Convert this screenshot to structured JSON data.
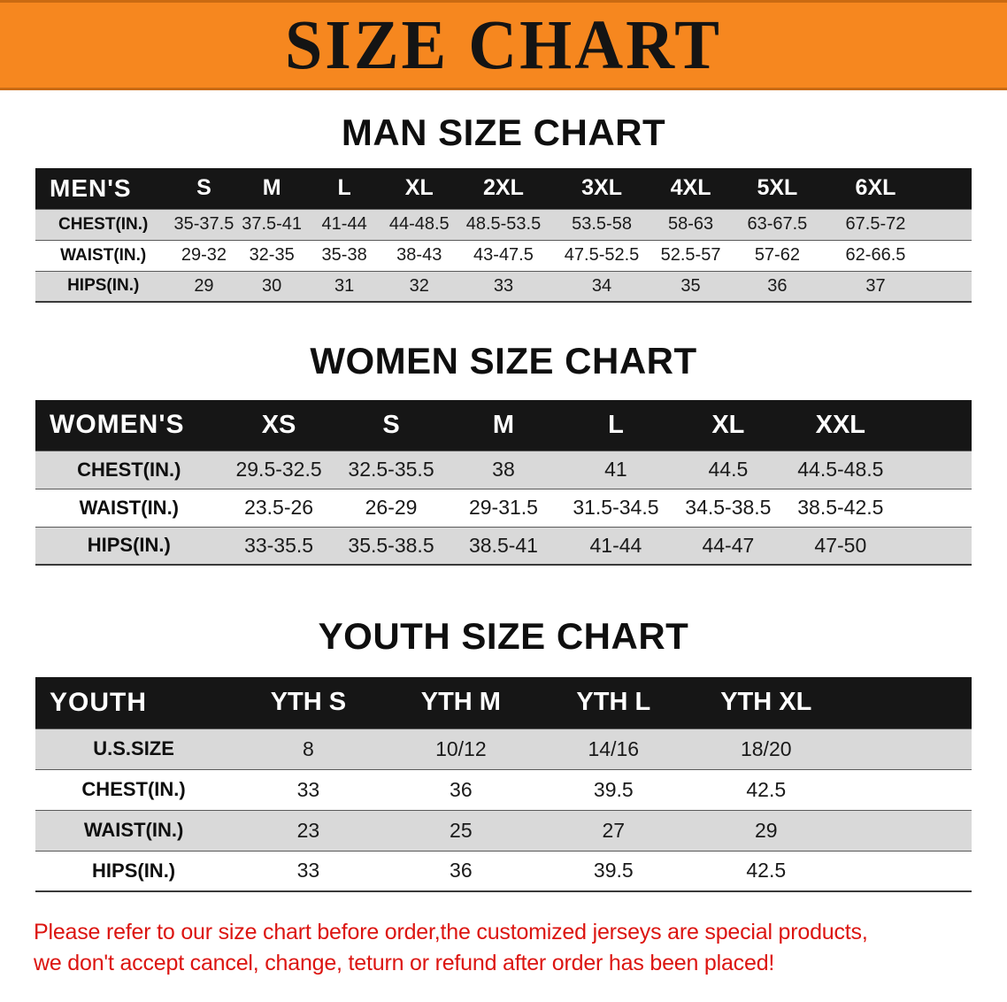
{
  "banner": {
    "title": "SIZE CHART"
  },
  "colors": {
    "banner_orange": "#F6871F",
    "banner_border": "#C96A12",
    "table_header_black": "#161616",
    "shaded_row_gray": "#D9D9D9",
    "disclaimer_red": "#DC1410"
  },
  "men": {
    "heading": "MAN SIZE CHART",
    "table": {
      "header": [
        "MEN'S",
        "S",
        "M",
        "L",
        "XL",
        "2XL",
        "3XL",
        "4XL",
        "5XL",
        "6XL"
      ],
      "rows": [
        {
          "label": "CHEST(IN.)",
          "values": [
            "35-37.5",
            "37.5-41",
            "41-44",
            "44-48.5",
            "48.5-53.5",
            "53.5-58",
            "58-63",
            "63-67.5",
            "67.5-72"
          ]
        },
        {
          "label": "WAIST(IN.)",
          "values": [
            "29-32",
            "32-35",
            "35-38",
            "38-43",
            "43-47.5",
            "47.5-52.5",
            "52.5-57",
            "57-62",
            "62-66.5"
          ]
        },
        {
          "label": "HIPS(IN.)",
          "values": [
            "29",
            "30",
            "31",
            "32",
            "33",
            "34",
            "35",
            "36",
            "37"
          ]
        }
      ]
    }
  },
  "women": {
    "heading": "WOMEN SIZE CHART",
    "table": {
      "header": [
        "WOMEN'S",
        "XS",
        "S",
        "M",
        "L",
        "XL",
        "XXL"
      ],
      "rows": [
        {
          "label": "CHEST(IN.)",
          "values": [
            "29.5-32.5",
            "32.5-35.5",
            "38",
            "41",
            "44.5",
            "44.5-48.5"
          ]
        },
        {
          "label": "WAIST(IN.)",
          "values": [
            "23.5-26",
            "26-29",
            "29-31.5",
            "31.5-34.5",
            "34.5-38.5",
            "38.5-42.5"
          ]
        },
        {
          "label": "HIPS(IN.)",
          "values": [
            "33-35.5",
            "35.5-38.5",
            "38.5-41",
            "41-44",
            "44-47",
            "47-50"
          ]
        }
      ]
    }
  },
  "youth": {
    "heading": "YOUTH SIZE CHART",
    "table": {
      "header": [
        "YOUTH",
        "YTH S",
        "YTH M",
        "YTH L",
        "YTH XL"
      ],
      "rows": [
        {
          "label": "U.S.SIZE",
          "values": [
            "8",
            "10/12",
            "14/16",
            "18/20"
          ]
        },
        {
          "label": "CHEST(IN.)",
          "values": [
            "33",
            "36",
            "39.5",
            "42.5"
          ]
        },
        {
          "label": "WAIST(IN.)",
          "values": [
            "23",
            "25",
            "27",
            "29"
          ]
        },
        {
          "label": "HIPS(IN.)",
          "values": [
            "33",
            "36",
            "39.5",
            "42.5"
          ]
        }
      ]
    }
  },
  "disclaimer": {
    "line1": "Please refer to our size chart before order,the customized jerseys are special products,",
    "line2": "we don't accept cancel, change, teturn or refund after order has been placed!"
  }
}
